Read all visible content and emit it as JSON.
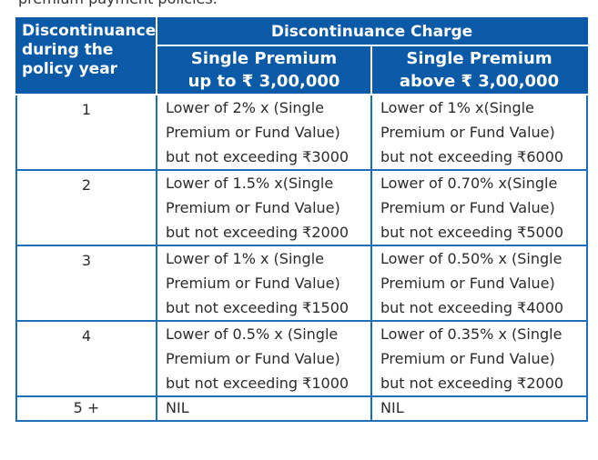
{
  "page": {
    "top_text": "premium payment policies."
  },
  "table": {
    "header": {
      "col1": [
        "Discontinuance",
        "during the",
        "policy year"
      ],
      "group": "Discontinuance Charge",
      "col2": [
        "Single Premium",
        "up to ₹ 3,00,000"
      ],
      "col3": [
        "Single Premium",
        "above ₹ 3,00,000"
      ]
    },
    "rows": [
      {
        "year": "1",
        "col2": [
          "Lower of 2% x (Single",
          "Premium or Fund Value)",
          "but not exceeding ₹3000"
        ],
        "col3": [
          "Lower of 1% x(Single",
          "Premium or Fund Value)",
          "but not exceeding ₹6000"
        ]
      },
      {
        "year": "2",
        "col2": [
          "Lower of 1.5% x(Single",
          "Premium or Fund Value)",
          "but not exceeding ₹2000"
        ],
        "col3": [
          "Lower of 0.70% x(Single",
          "Premium or Fund Value)",
          "but not exceeding ₹5000"
        ]
      },
      {
        "year": "3",
        "col2": [
          "Lower of 1% x (Single",
          "Premium or Fund Value)",
          "but not exceeding ₹1500"
        ],
        "col3": [
          "Lower of 0.50% x (Single",
          "Premium or Fund Value)",
          "but not exceeding ₹4000"
        ]
      },
      {
        "year": "4",
        "col2": [
          "Lower of 0.5% x (Single",
          "Premium or Fund Value)",
          "but not exceeding ₹1000"
        ],
        "col3": [
          "Lower of 0.35% x (Single",
          "Premium or Fund Value)",
          "but not exceeding ₹2000"
        ]
      },
      {
        "year": "5 +",
        "col2": [
          "NIL"
        ],
        "col3": [
          "NIL"
        ]
      }
    ]
  }
}
